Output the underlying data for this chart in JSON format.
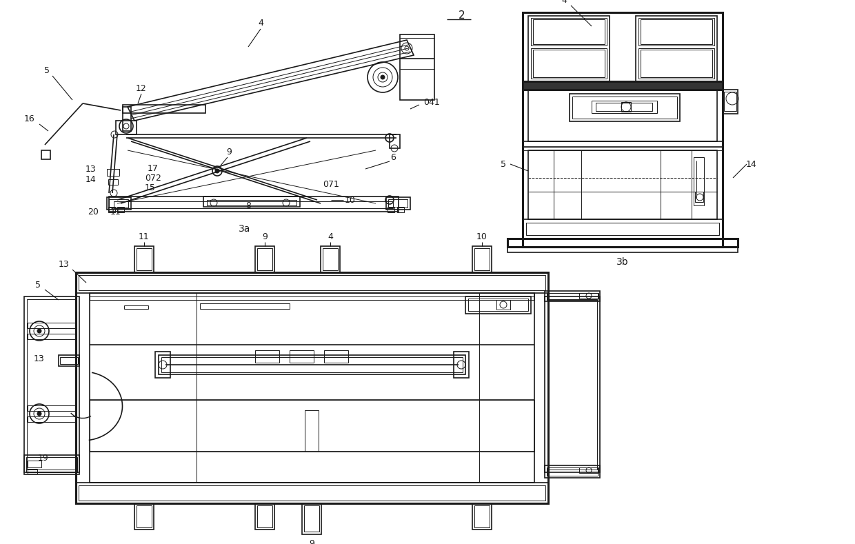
{
  "bg_color": "#ffffff",
  "lc": "#1a1a1a",
  "lw": 1.2,
  "tlw": 0.7,
  "thk": 2.2,
  "fig_width": 12.4,
  "fig_height": 7.89
}
